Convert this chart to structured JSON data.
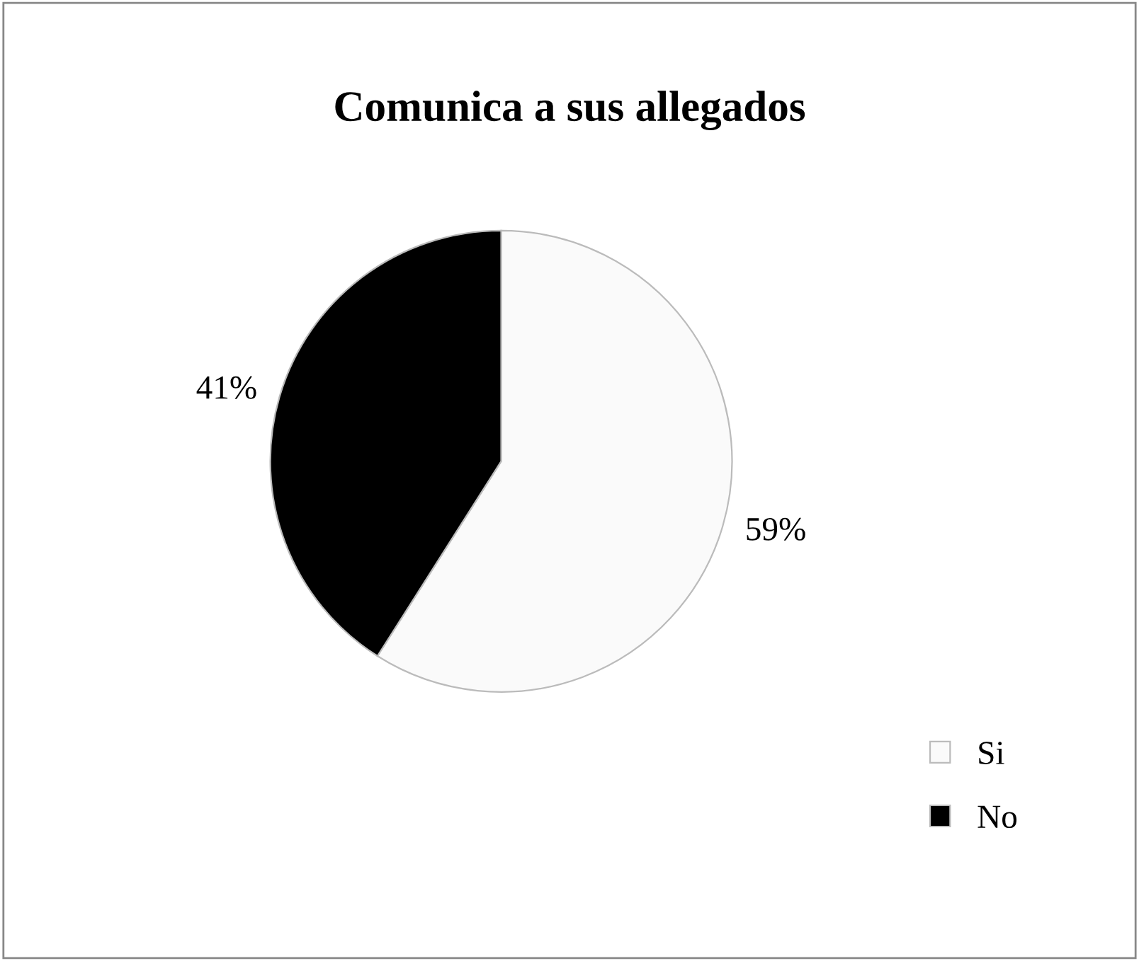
{
  "chart_data": {
    "type": "pie",
    "title": "Comunica a sus allegados",
    "categories": [
      "Si",
      "No"
    ],
    "values": [
      59,
      41
    ],
    "colors": [
      "#fafafa",
      "#000000"
    ],
    "value_labels": [
      "59%",
      "41%"
    ],
    "legend": "bottom right"
  }
}
